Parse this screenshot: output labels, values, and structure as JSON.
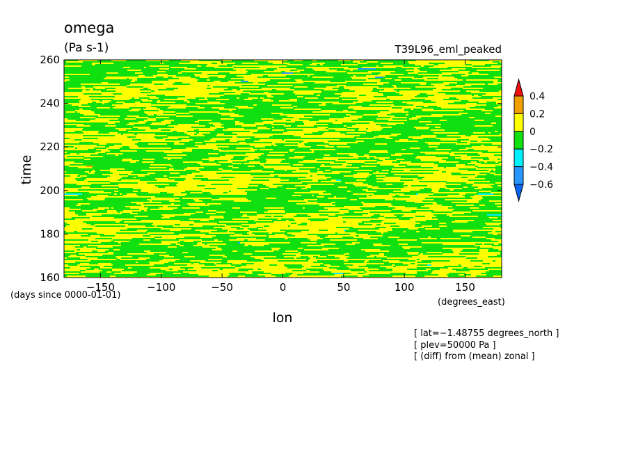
{
  "chart_data": {
    "type": "heatmap",
    "title": "omega",
    "units": "(Pa s-1)",
    "run_label": "T39L96_eml_peaked",
    "xlabel": "lon",
    "x_units": "(degrees_east)",
    "ylabel": "time",
    "y_units": "(days since 0000-01-01)",
    "xlim": [
      -180,
      180
    ],
    "ylim": [
      160,
      260
    ],
    "x_ticks": [
      -150,
      -100,
      -50,
      0,
      50,
      100,
      150
    ],
    "x_tick_labels": [
      "−150",
      "−100",
      "−50",
      "0",
      "50",
      "100",
      "150"
    ],
    "y_ticks": [
      160,
      180,
      200,
      220,
      240,
      260
    ],
    "y_tick_labels": [
      "160",
      "180",
      "200",
      "220",
      "240",
      "260"
    ],
    "colorbar": {
      "levels": [
        -0.6,
        -0.4,
        -0.2,
        0,
        0.2,
        0.4
      ],
      "labels": [
        "−0.6",
        "−0.4",
        "−0.2",
        "0",
        "0.2",
        "0.4"
      ],
      "bins": [
        {
          "range": "< -0.6",
          "color": "#0a64f0"
        },
        {
          "range": "-0.6 to -0.4",
          "color": "#2896ff"
        },
        {
          "range": "-0.4 to -0.2",
          "color": "#00f0ff"
        },
        {
          "range": "-0.2 to 0",
          "color": "#10e010"
        },
        {
          "range": "0 to 0.2",
          "color": "#ffff00"
        },
        {
          "range": "0.2 to 0.4",
          "color": "#f0a000"
        },
        {
          "range": "> 0.4",
          "color": "#f01010"
        }
      ]
    },
    "field_description": "Noisy zonal-mean-anomaly of omega; mostly green (-0.2..0) and yellow (0..0.2) streaks with rare cyan/blue points",
    "annotations": [
      "[ lat=−1.48755 degrees_north ]",
      "[ plev=50000 Pa ]",
      "[ (diff) from (mean) zonal ]"
    ]
  }
}
